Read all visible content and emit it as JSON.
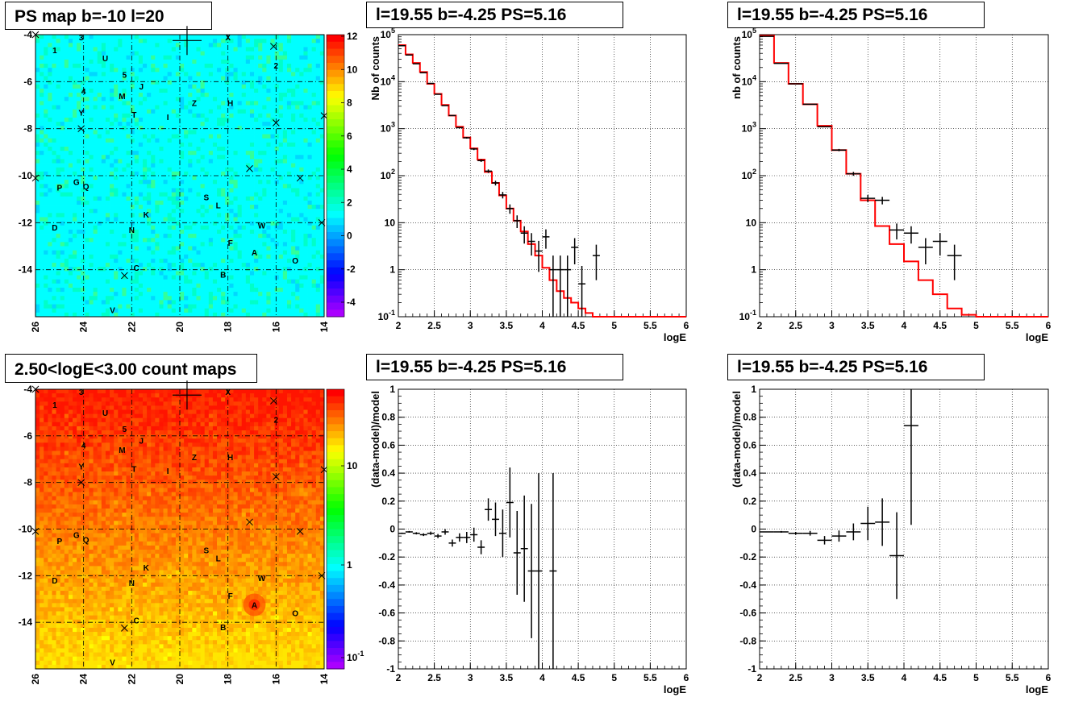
{
  "colors": {
    "data": "#000000",
    "model": "#ff0000",
    "frame": "#000000",
    "grid": "#000000"
  },
  "panels": [
    {
      "id": "ps-map",
      "title": "PS map b=-10 l=20",
      "type": "map",
      "xticks": [
        "26",
        "24",
        "22",
        "20",
        "18",
        "16",
        "14"
      ],
      "yticks": [
        "-4",
        "-6",
        "-8",
        "-10",
        "-12",
        "-14"
      ],
      "palette_ticks": [
        "12",
        "10",
        "8",
        "6",
        "4",
        "2",
        "0",
        "-2",
        "-4"
      ],
      "map_style": "flat-cyan"
    },
    {
      "id": "spec-fine",
      "title": "l=19.55 b=-4.25 PS=5.16",
      "type": "spectrum",
      "xlabel": "logE",
      "ylabel": "Nb of counts",
      "xticks": [
        "2",
        "2.5",
        "3",
        "3.5",
        "4",
        "4.5",
        "5",
        "5.5",
        "6"
      ],
      "yticks": [
        "10^-1",
        "1",
        "10",
        "10^2",
        "10^3",
        "10^4",
        "10^5"
      ]
    },
    {
      "id": "spec-coarse",
      "title": "l=19.55 b=-4.25 PS=5.16",
      "type": "spectrum",
      "xlabel": "logE",
      "ylabel": "nb of counts",
      "xticks": [
        "2",
        "2.5",
        "3",
        "3.5",
        "4",
        "4.5",
        "5",
        "5.5",
        "6"
      ],
      "yticks": [
        "10^-1",
        "1",
        "10",
        "10^2",
        "10^3",
        "10^4",
        "10^5"
      ]
    },
    {
      "id": "count-map",
      "title": "2.50<logE<3.00 count maps",
      "type": "map",
      "xticks": [
        "26",
        "24",
        "22",
        "20",
        "18",
        "16",
        "14"
      ],
      "yticks": [
        "-4",
        "-6",
        "-8",
        "-10",
        "-12",
        "-14"
      ],
      "palette_ticks": [
        "10",
        "1",
        "10^-1"
      ],
      "map_style": "gradient-red-yellow"
    },
    {
      "id": "resid-fine",
      "title": "l=19.55 b=-4.25 PS=5.16",
      "type": "residual",
      "xlabel": "logE",
      "ylabel": "(data-model)/model",
      "xticks": [
        "2",
        "2.5",
        "3",
        "3.5",
        "4",
        "4.5",
        "5",
        "5.5",
        "6"
      ],
      "yticks": [
        "-1",
        "-0.8",
        "-0.6",
        "-0.4",
        "-0.2",
        "0",
        "0.2",
        "0.4",
        "0.6",
        "0.8",
        "1"
      ]
    },
    {
      "id": "resid-coarse",
      "title": "l=19.55 b=-4.25 PS=5.16",
      "type": "residual",
      "xlabel": "logE",
      "ylabel": "(data-model)/model",
      "xticks": [
        "2",
        "2.5",
        "3",
        "3.5",
        "4",
        "4.5",
        "5",
        "5.5",
        "6"
      ],
      "yticks": [
        "-1",
        "-0.8",
        "-0.6",
        "-0.4",
        "-0.2",
        "0",
        "0.2",
        "0.4",
        "0.6",
        "0.8",
        "1"
      ]
    }
  ],
  "map_sources": [
    {
      "label": "1",
      "l": 25.2,
      "b": -4.65
    },
    {
      "label": "3",
      "l": 24.1,
      "b": -4.1
    },
    {
      "label": "U",
      "l": 23.1,
      "b": -5.0
    },
    {
      "label": "2",
      "l": 16.0,
      "b": -5.3
    },
    {
      "label": "5",
      "l": 22.3,
      "b": -5.7
    },
    {
      "label": "J",
      "l": 21.6,
      "b": -6.2
    },
    {
      "label": "4",
      "l": 24.0,
      "b": -6.4
    },
    {
      "label": "M",
      "l": 22.4,
      "b": -6.6
    },
    {
      "label": "Z",
      "l": 19.4,
      "b": -6.9
    },
    {
      "label": "H",
      "l": 17.9,
      "b": -6.9
    },
    {
      "label": "Y",
      "l": 24.1,
      "b": -7.3
    },
    {
      "label": "T",
      "l": 21.9,
      "b": -7.4
    },
    {
      "label": "I",
      "l": 20.5,
      "b": -7.5
    },
    {
      "label": "G",
      "l": 24.3,
      "b": -10.25
    },
    {
      "label": "P",
      "l": 25.0,
      "b": -10.5
    },
    {
      "label": "Q",
      "l": 23.9,
      "b": -10.45
    },
    {
      "label": "S",
      "l": 18.9,
      "b": -10.9
    },
    {
      "label": "L",
      "l": 18.4,
      "b": -11.25
    },
    {
      "label": "K",
      "l": 21.4,
      "b": -11.65
    },
    {
      "label": "W",
      "l": 16.6,
      "b": -12.1
    },
    {
      "label": "D",
      "l": 25.2,
      "b": -12.2
    },
    {
      "label": "N",
      "l": 22.0,
      "b": -12.3
    },
    {
      "label": "F",
      "l": 17.9,
      "b": -12.85
    },
    {
      "label": "A",
      "l": 16.9,
      "b": -13.25
    },
    {
      "label": "O",
      "l": 15.2,
      "b": -13.6
    },
    {
      "label": "C",
      "l": 21.8,
      "b": -13.9
    },
    {
      "label": "B",
      "l": 18.2,
      "b": -14.2
    },
    {
      "label": "V",
      "l": 22.8,
      "b": -15.7
    },
    {
      "label": "X",
      "l": 18.0,
      "b": -4.1
    }
  ],
  "map_crosses": [
    {
      "l": 26.0,
      "b": -4.0
    },
    {
      "l": 16.1,
      "b": -4.5
    },
    {
      "l": 14.0,
      "b": -7.45
    },
    {
      "l": 24.1,
      "b": -8.0
    },
    {
      "l": 16.0,
      "b": -7.75
    },
    {
      "l": 17.1,
      "b": -9.7
    },
    {
      "l": 15.0,
      "b": -10.1
    },
    {
      "l": 14.1,
      "b": -12.0
    },
    {
      "l": 22.3,
      "b": -14.25
    },
    {
      "l": 26.0,
      "b": -10.1
    }
  ],
  "big_cross": {
    "l": 19.7,
    "b": -4.25
  },
  "chart_data": [
    {
      "type": "histogram",
      "panel": "spec-fine",
      "title": "l=19.55 b=-4.25 PS=5.16",
      "xlabel": "logE",
      "ylabel": "Nb of counts",
      "xlim": [
        2,
        6
      ],
      "ylim": [
        0.1,
        100000
      ],
      "yscale": "log",
      "grid": true,
      "series": [
        {
          "kind": "model-step",
          "bin_edges": [
            2,
            2.1,
            2.2,
            2.3,
            2.4,
            2.5,
            2.6,
            2.7,
            2.8,
            2.9,
            3.0,
            3.1,
            3.2,
            3.3,
            3.4,
            3.5,
            3.6,
            3.7,
            3.8,
            3.9,
            4.0,
            4.1,
            4.2,
            4.3,
            4.4,
            4.5,
            4.6,
            4.7,
            4.8,
            4.9,
            5.0,
            6.0
          ],
          "values": [
            60000,
            38000,
            25000,
            16000,
            9000,
            5500,
            3200,
            1900,
            1100,
            650,
            380,
            220,
            120,
            70,
            38,
            20,
            11,
            6.5,
            3.5,
            2.0,
            1.1,
            0.6,
            0.35,
            0.25,
            0.2,
            0.15,
            0.12,
            0.1,
            0.1,
            0.1,
            0.1
          ]
        },
        {
          "kind": "data-points",
          "x": [
            2.05,
            2.15,
            2.25,
            2.35,
            2.45,
            2.55,
            2.65,
            2.75,
            2.85,
            2.95,
            3.05,
            3.15,
            3.25,
            3.35,
            3.45,
            3.55,
            3.65,
            3.75,
            3.85,
            3.95,
            4.05,
            4.15,
            4.25,
            4.35,
            4.45,
            4.55,
            4.75
          ],
          "y": [
            58000,
            37000,
            24000,
            15500,
            9200,
            5400,
            3100,
            1900,
            1050,
            640,
            370,
            210,
            125,
            70,
            39,
            20,
            11,
            6,
            4,
            2.5,
            5,
            1,
            1,
            1,
            3,
            0.5,
            2
          ],
          "yerr": [
            240,
            190,
            155,
            125,
            96,
            73,
            56,
            44,
            32,
            25,
            19,
            14,
            11,
            8,
            6.2,
            4.5,
            3.3,
            2.4,
            2,
            1.6,
            2.2,
            1,
            1,
            1,
            1.7,
            0.7,
            1.4
          ]
        }
      ]
    },
    {
      "type": "histogram",
      "panel": "spec-coarse",
      "title": "l=19.55 b=-4.25 PS=5.16",
      "xlabel": "logE",
      "ylabel": "nb of counts",
      "xlim": [
        2,
        6
      ],
      "ylim": [
        0.1,
        100000
      ],
      "yscale": "log",
      "grid": true,
      "series": [
        {
          "kind": "model-step",
          "bin_edges": [
            2,
            2.2,
            2.4,
            2.6,
            2.8,
            3.0,
            3.2,
            3.4,
            3.6,
            3.8,
            4.0,
            4.2,
            4.4,
            4.6,
            4.8,
            5.0,
            6.0
          ],
          "values": [
            95000,
            25000,
            9000,
            3300,
            1150,
            350,
            110,
            30,
            8.5,
            3.5,
            1.5,
            0.6,
            0.3,
            0.15,
            0.11,
            0.1
          ]
        },
        {
          "kind": "data-points",
          "x": [
            2.1,
            2.3,
            2.5,
            2.7,
            2.9,
            3.1,
            3.3,
            3.5,
            3.7,
            3.9,
            4.1,
            4.3,
            4.5,
            4.7
          ],
          "y": [
            92000,
            24500,
            9000,
            3300,
            1100,
            350,
            110,
            33,
            30,
            7,
            6,
            3,
            4,
            2
          ],
          "yerr": [
            300,
            156,
            95,
            57,
            33,
            19,
            10.5,
            5.7,
            5.5,
            2.6,
            2.4,
            1.7,
            2,
            1.4
          ]
        }
      ]
    },
    {
      "type": "scatter",
      "panel": "resid-fine",
      "title": "l=19.55 b=-4.25 PS=5.16",
      "xlabel": "logE",
      "ylabel": "(data-model)/model",
      "xlim": [
        2,
        6
      ],
      "ylim": [
        -1,
        1
      ],
      "grid": true,
      "series": [
        {
          "kind": "data-points",
          "x": [
            2.05,
            2.15,
            2.25,
            2.35,
            2.45,
            2.55,
            2.65,
            2.75,
            2.85,
            2.95,
            3.05,
            3.15,
            3.25,
            3.35,
            3.45,
            3.55,
            3.65,
            3.75,
            3.85,
            3.95,
            4.15
          ],
          "y": [
            -0.03,
            -0.02,
            -0.03,
            -0.04,
            -0.03,
            -0.05,
            -0.02,
            -0.1,
            -0.06,
            -0.06,
            -0.04,
            -0.13,
            0.14,
            0.07,
            -0.03,
            0.19,
            -0.17,
            -0.14,
            -0.3,
            -0.3,
            -0.3
          ],
          "yerr": [
            0.005,
            0.006,
            0.008,
            0.01,
            0.012,
            0.015,
            0.02,
            0.025,
            0.03,
            0.04,
            0.05,
            0.05,
            0.08,
            0.12,
            0.17,
            0.25,
            0.3,
            0.38,
            0.48,
            0.7,
            0.7
          ]
        }
      ]
    },
    {
      "type": "scatter",
      "panel": "resid-coarse",
      "title": "l=19.55 b=-4.25 PS=5.16",
      "xlabel": "logE",
      "ylabel": "(data-model)/model",
      "xlim": [
        2,
        6
      ],
      "ylim": [
        -1,
        1
      ],
      "grid": true,
      "series": [
        {
          "kind": "data-points",
          "x": [
            2.1,
            2.3,
            2.5,
            2.7,
            2.9,
            3.1,
            3.3,
            3.5,
            3.7,
            3.9,
            4.1
          ],
          "y": [
            -0.02,
            -0.02,
            -0.03,
            -0.03,
            -0.08,
            -0.05,
            -0.02,
            0.04,
            0.05,
            -0.19,
            0.74
          ],
          "yerr": [
            0.004,
            0.006,
            0.01,
            0.017,
            0.03,
            0.04,
            0.06,
            0.12,
            0.17,
            0.31,
            0.71
          ]
        }
      ]
    }
  ]
}
